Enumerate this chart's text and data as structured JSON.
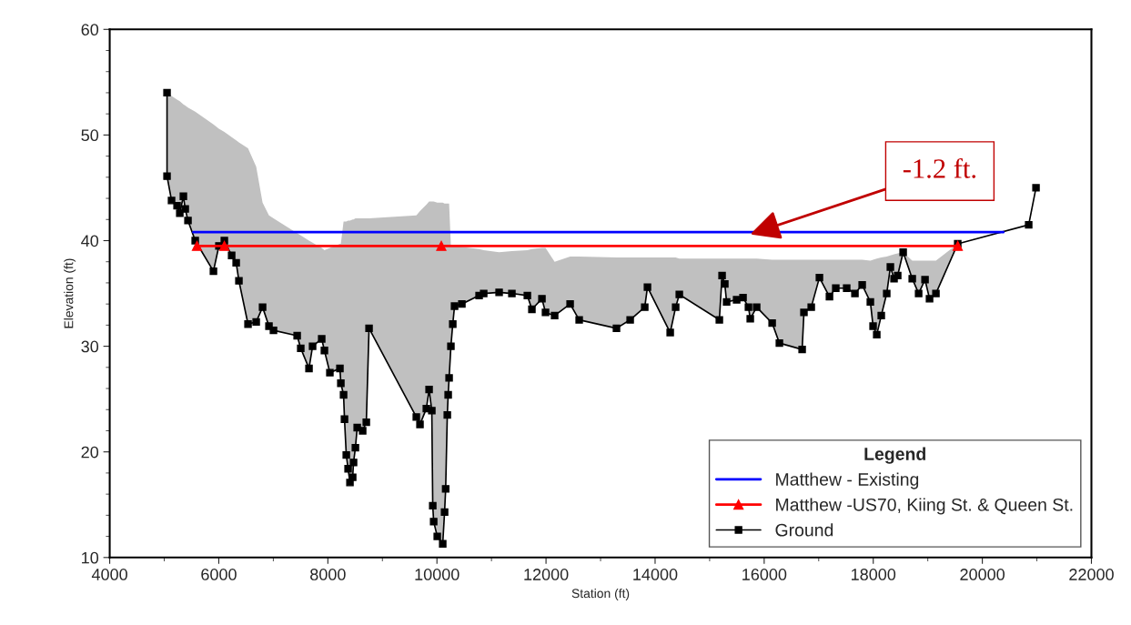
{
  "chart_data": {
    "type": "line",
    "xlabel": "Station (ft)",
    "ylabel": "Elevation (ft)",
    "xlim": [
      4000,
      22000
    ],
    "xticks": [
      4000,
      6000,
      8000,
      10000,
      12000,
      14000,
      16000,
      18000,
      20000,
      22000
    ],
    "ylim": [
      10,
      60
    ],
    "yticks": [
      10,
      20,
      30,
      40,
      50,
      60
    ],
    "grid": false,
    "legend": "bottom right",
    "legend_title": "Legend",
    "annotations": [
      {
        "text": "-1.2 ft.",
        "x": 15745,
        "y": 40.6
      }
    ],
    "series": [
      {
        "name": "Matthew - Existing",
        "color": "#0000ff",
        "marker": "none",
        "x": [
          5535,
          20385
        ],
        "values": [
          40.8,
          40.8
        ]
      },
      {
        "name": "Matthew -US70, Kiing St. & Queen St.",
        "color": "#ff0000",
        "marker": "triangle",
        "x": [
          5600,
          6102,
          10080,
          19549
        ],
        "values": [
          39.5,
          39.5,
          39.5,
          39.5
        ]
      },
      {
        "name": "Ground",
        "color": "#000000",
        "marker": "square",
        "x": [
          5051,
          5051,
          5134,
          5235,
          5285,
          5351,
          5385,
          5435,
          5568,
          5902,
          6002,
          6102,
          6236,
          6319,
          6369,
          6536,
          6686,
          6803,
          6920,
          7003,
          7437,
          7503,
          7654,
          7720,
          7887,
          7937,
          8037,
          8221,
          8238,
          8288,
          8305,
          8338,
          8371,
          8405,
          8455,
          8471,
          8505,
          8538,
          8638,
          8705,
          8755,
          9622,
          9689,
          9806,
          9856,
          9906,
          9923,
          9940,
          10006,
          10106,
          10140,
          10160,
          10190,
          10206,
          10223,
          10256,
          10290,
          10323,
          10457,
          10773,
          10857,
          11140,
          11374,
          11658,
          11741,
          11925,
          11991,
          12158,
          12442,
          12608,
          13292,
          13543,
          13810,
          13860,
          14277,
          14377,
          14444,
          15178,
          15228,
          15278,
          15311,
          15495,
          15612,
          15712,
          15745,
          15862,
          16146,
          16279,
          16696,
          16729,
          16863,
          17013,
          17197,
          17313,
          17513,
          17664,
          17797,
          17947,
          17997,
          18064,
          18147,
          18247,
          18314,
          18381,
          18448,
          18548,
          18715,
          18832,
          18949,
          19032,
          19149,
          19549,
          20850,
          20984
        ],
        "values": [
          54.0,
          46.1,
          43.8,
          43.3,
          42.6,
          44.2,
          43.0,
          41.9,
          40.0,
          37.1,
          39.5,
          40.0,
          38.6,
          37.9,
          36.2,
          32.1,
          32.3,
          33.7,
          31.9,
          31.5,
          31.0,
          29.8,
          27.9,
          30.0,
          30.7,
          29.6,
          27.5,
          27.9,
          26.5,
          25.4,
          23.1,
          19.7,
          18.4,
          17.1,
          17.6,
          19.0,
          20.4,
          22.3,
          22.0,
          22.8,
          31.7,
          23.3,
          22.6,
          24.1,
          25.9,
          23.9,
          14.9,
          13.4,
          12.0,
          11.3,
          14.3,
          16.5,
          23.5,
          25.4,
          27.0,
          30.0,
          32.1,
          33.8,
          34.0,
          34.8,
          35.0,
          35.1,
          35.0,
          34.8,
          33.5,
          34.5,
          33.2,
          32.9,
          34.0,
          32.5,
          31.7,
          32.5,
          33.7,
          35.6,
          31.3,
          33.7,
          34.9,
          32.5,
          36.7,
          35.9,
          34.2,
          34.4,
          34.6,
          33.7,
          32.6,
          33.7,
          32.2,
          30.3,
          29.7,
          33.2,
          33.7,
          36.5,
          34.7,
          35.5,
          35.5,
          35.0,
          35.8,
          34.2,
          31.9,
          31.1,
          32.9,
          35.0,
          37.5,
          36.4,
          36.7,
          38.9,
          36.4,
          35.0,
          36.3,
          34.5,
          35.0,
          39.7,
          41.5,
          45.0
        ],
        "lower": [
          54.0,
          46.1,
          43.8,
          43.3,
          42.6,
          44.2,
          43.0,
          41.9,
          40.0,
          37.1,
          39.5,
          40.0,
          38.6,
          37.9,
          36.2,
          32.1,
          32.3,
          33.7,
          31.9,
          31.5,
          31.0,
          29.8,
          27.9,
          30.0,
          30.7,
          29.6,
          27.5,
          27.9,
          26.5,
          25.4,
          23.1,
          19.7,
          18.4,
          17.1,
          17.6,
          19.0,
          20.4,
          22.3,
          22.0,
          22.8,
          31.7,
          23.3,
          22.6,
          24.1,
          25.9,
          23.9,
          14.9,
          13.4,
          12.0,
          11.3,
          14.3,
          16.5,
          23.5,
          25.4,
          27.0,
          30.0,
          32.1,
          33.8,
          34.0,
          34.8,
          35.0,
          35.1,
          35.0,
          34.8,
          33.5,
          34.5,
          33.2,
          32.9,
          34.0,
          32.5,
          31.7,
          32.5,
          33.7,
          35.6,
          31.3,
          33.7,
          34.9,
          32.5,
          36.7,
          35.9,
          34.2,
          34.4,
          34.6,
          33.7,
          32.6,
          33.7,
          32.2,
          30.3,
          29.7,
          33.2,
          33.7,
          36.5,
          34.7,
          35.5,
          35.5,
          35.0,
          35.8,
          34.2,
          31.9,
          31.1,
          32.9,
          35.0,
          37.5,
          36.4,
          36.7,
          38.9,
          36.4,
          35.0,
          36.3,
          34.5,
          35.0,
          39.7,
          null,
          null
        ],
        "upper": [
          54.0,
          54.0,
          53.7,
          53.35,
          53.2,
          52.9,
          52.8,
          52.6,
          52.2,
          51.0,
          50.6,
          50.3,
          49.8,
          49.5,
          49.3,
          48.75,
          47.0,
          43.6,
          42.4,
          42.1,
          40.7,
          40.5,
          40.0,
          39.8,
          39.3,
          39.1,
          39.3,
          39.7,
          39.7,
          41.8,
          41.8,
          41.8,
          41.9,
          41.9,
          42.0,
          42.0,
          42.1,
          42.1,
          42.1,
          42.1,
          42.1,
          42.4,
          42.8,
          43.4,
          43.7,
          43.7,
          43.7,
          43.7,
          43.6,
          43.6,
          43.5,
          43.5,
          43.5,
          43.5,
          43.5,
          39.5,
          39.5,
          39.5,
          39.4,
          39.2,
          39.1,
          38.9,
          39.0,
          39.1,
          39.2,
          39.3,
          39.3,
          38.0,
          38.5,
          38.5,
          38.4,
          38.4,
          38.4,
          38.4,
          38.4,
          38.4,
          38.3,
          38.3,
          38.3,
          38.3,
          38.3,
          38.3,
          38.3,
          38.3,
          38.3,
          38.3,
          38.2,
          38.2,
          38.2,
          38.2,
          38.2,
          38.2,
          38.2,
          38.2,
          38.2,
          38.2,
          38.2,
          38.1,
          38.2,
          38.3,
          38.4,
          38.5,
          38.6,
          38.7,
          38.8,
          38.9,
          38.1,
          38.1,
          38.1,
          38.1,
          38.1,
          39.7,
          null,
          null
        ]
      }
    ]
  }
}
